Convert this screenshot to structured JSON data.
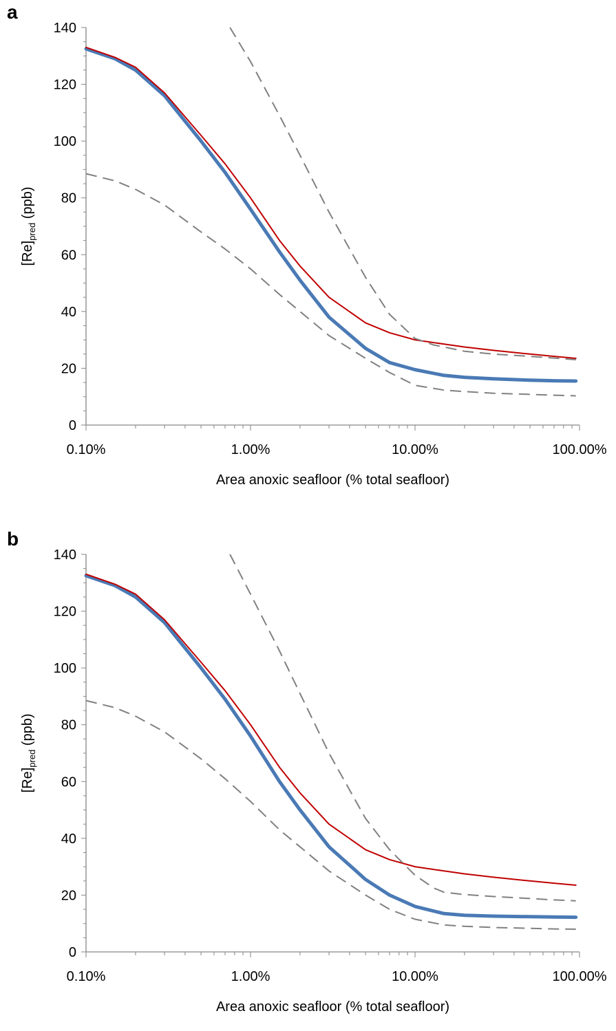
{
  "chart_data": [
    {
      "type": "line",
      "panel_label": "a",
      "xlabel": "Area anoxic seafloor (% total seafloor)",
      "ylabel": "[Re]pred (ppb)",
      "ylabel_main": "[Re]",
      "ylabel_sub": "pred",
      "ylabel_unit": " (ppb)",
      "x_scale": "log",
      "xlim": [
        0.1,
        100
      ],
      "ylim": [
        0,
        140
      ],
      "x_ticks": [
        0.1,
        1,
        10,
        100
      ],
      "x_tick_labels": [
        "0.10%",
        "1.00%",
        "10.00%",
        "100.00%"
      ],
      "y_ticks": [
        0,
        20,
        40,
        60,
        80,
        100,
        120,
        140
      ],
      "y_tick_labels": [
        "0",
        "20",
        "40",
        "60",
        "80",
        "100",
        "120",
        "140"
      ],
      "grid": false,
      "series": [
        {
          "color": "#4a7ab5",
          "style": "solid",
          "width": 5,
          "x": [
            0.1,
            0.15,
            0.2,
            0.3,
            0.5,
            0.7,
            1,
            1.5,
            2,
            3,
            5,
            7,
            10,
            15,
            20,
            30,
            50,
            70,
            95
          ],
          "y": [
            132.5,
            129,
            125,
            116,
            100,
            89,
            76,
            61,
            51,
            38,
            27,
            22,
            19.5,
            17.5,
            16.8,
            16.3,
            15.8,
            15.6,
            15.5
          ]
        },
        {
          "color": "#c00000",
          "style": "solid",
          "width": 2,
          "x": [
            0.1,
            0.15,
            0.2,
            0.3,
            0.5,
            0.7,
            1,
            1.5,
            2,
            3,
            5,
            7,
            10,
            15,
            20,
            30,
            50,
            70,
            95
          ],
          "y": [
            133,
            129.5,
            126,
            117,
            102,
            92,
            80,
            65,
            56,
            45,
            36,
            32.5,
            30,
            28.5,
            27.5,
            26.3,
            25,
            24.2,
            23.5
          ]
        },
        {
          "color": "#808080",
          "style": "dashed",
          "width": 2,
          "x": [
            0.1,
            0.15,
            0.2,
            0.3,
            0.5,
            0.7,
            1,
            1.5,
            2,
            3,
            5,
            7,
            10,
            15,
            20,
            30,
            50,
            70,
            95
          ],
          "y": [
            88.5,
            86,
            83,
            77.5,
            68,
            62,
            55,
            46,
            40,
            31.5,
            23.5,
            18.5,
            14,
            12.3,
            11.8,
            11.2,
            10.8,
            10.5,
            10.3
          ]
        },
        {
          "color": "#808080",
          "style": "dashed",
          "width": 2,
          "x": [
            0.75,
            1,
            1.5,
            2,
            3,
            5,
            7,
            10,
            13,
            15,
            20,
            30,
            50,
            70,
            95
          ],
          "y": [
            140,
            128,
            109,
            95,
            75,
            52,
            39,
            30.5,
            28.2,
            27.5,
            26,
            25,
            24.2,
            23.6,
            23
          ]
        }
      ]
    },
    {
      "type": "line",
      "panel_label": "b",
      "xlabel": "Area anoxic seafloor (% total seafloor)",
      "ylabel": "[Re]pred (ppb)",
      "ylabel_main": "[Re]",
      "ylabel_sub": "pred",
      "ylabel_unit": " (ppb)",
      "x_scale": "log",
      "xlim": [
        0.1,
        100
      ],
      "ylim": [
        0,
        140
      ],
      "x_ticks": [
        0.1,
        1,
        10,
        100
      ],
      "x_tick_labels": [
        "0.10%",
        "1.00%",
        "10.00%",
        "100.00%"
      ],
      "y_ticks": [
        0,
        20,
        40,
        60,
        80,
        100,
        120,
        140
      ],
      "y_tick_labels": [
        "0",
        "20",
        "40",
        "60",
        "80",
        "100",
        "120",
        "140"
      ],
      "grid": false,
      "series": [
        {
          "color": "#4a7ab5",
          "style": "solid",
          "width": 5,
          "x": [
            0.1,
            0.15,
            0.2,
            0.3,
            0.5,
            0.7,
            1,
            1.5,
            2,
            3,
            5,
            7,
            10,
            15,
            20,
            30,
            50,
            70,
            95
          ],
          "y": [
            132.5,
            129,
            125,
            116,
            100,
            89,
            76,
            60,
            50,
            37,
            25.5,
            20,
            16,
            13.5,
            12.9,
            12.6,
            12.4,
            12.3,
            12.2
          ]
        },
        {
          "color": "#c00000",
          "style": "solid",
          "width": 2,
          "x": [
            0.1,
            0.15,
            0.2,
            0.3,
            0.5,
            0.7,
            1,
            1.5,
            2,
            3,
            5,
            7,
            10,
            15,
            20,
            30,
            50,
            70,
            95
          ],
          "y": [
            133,
            129.5,
            126,
            117,
            102,
            92,
            80,
            65,
            56,
            45,
            36,
            32.5,
            30,
            28.5,
            27.5,
            26.3,
            25,
            24.2,
            23.5
          ]
        },
        {
          "color": "#808080",
          "style": "dashed",
          "width": 2,
          "x": [
            0.1,
            0.15,
            0.2,
            0.3,
            0.5,
            0.7,
            1,
            1.5,
            2,
            3,
            5,
            7,
            10,
            15,
            20,
            30,
            50,
            70,
            95
          ],
          "y": [
            88.5,
            86,
            83,
            77.5,
            68,
            61,
            53,
            43,
            37,
            28.5,
            20,
            15,
            11.5,
            9.5,
            9,
            8.6,
            8.3,
            8.1,
            8
          ]
        },
        {
          "color": "#808080",
          "style": "dashed",
          "width": 2,
          "x": [
            0.75,
            1,
            1.5,
            2,
            3,
            5,
            7,
            10,
            13,
            15,
            20,
            30,
            50,
            70,
            95
          ],
          "y": [
            140,
            126,
            106,
            91,
            70,
            47,
            36,
            27,
            22.5,
            21,
            20.2,
            19.5,
            18.8,
            18.3,
            18
          ]
        }
      ]
    }
  ]
}
